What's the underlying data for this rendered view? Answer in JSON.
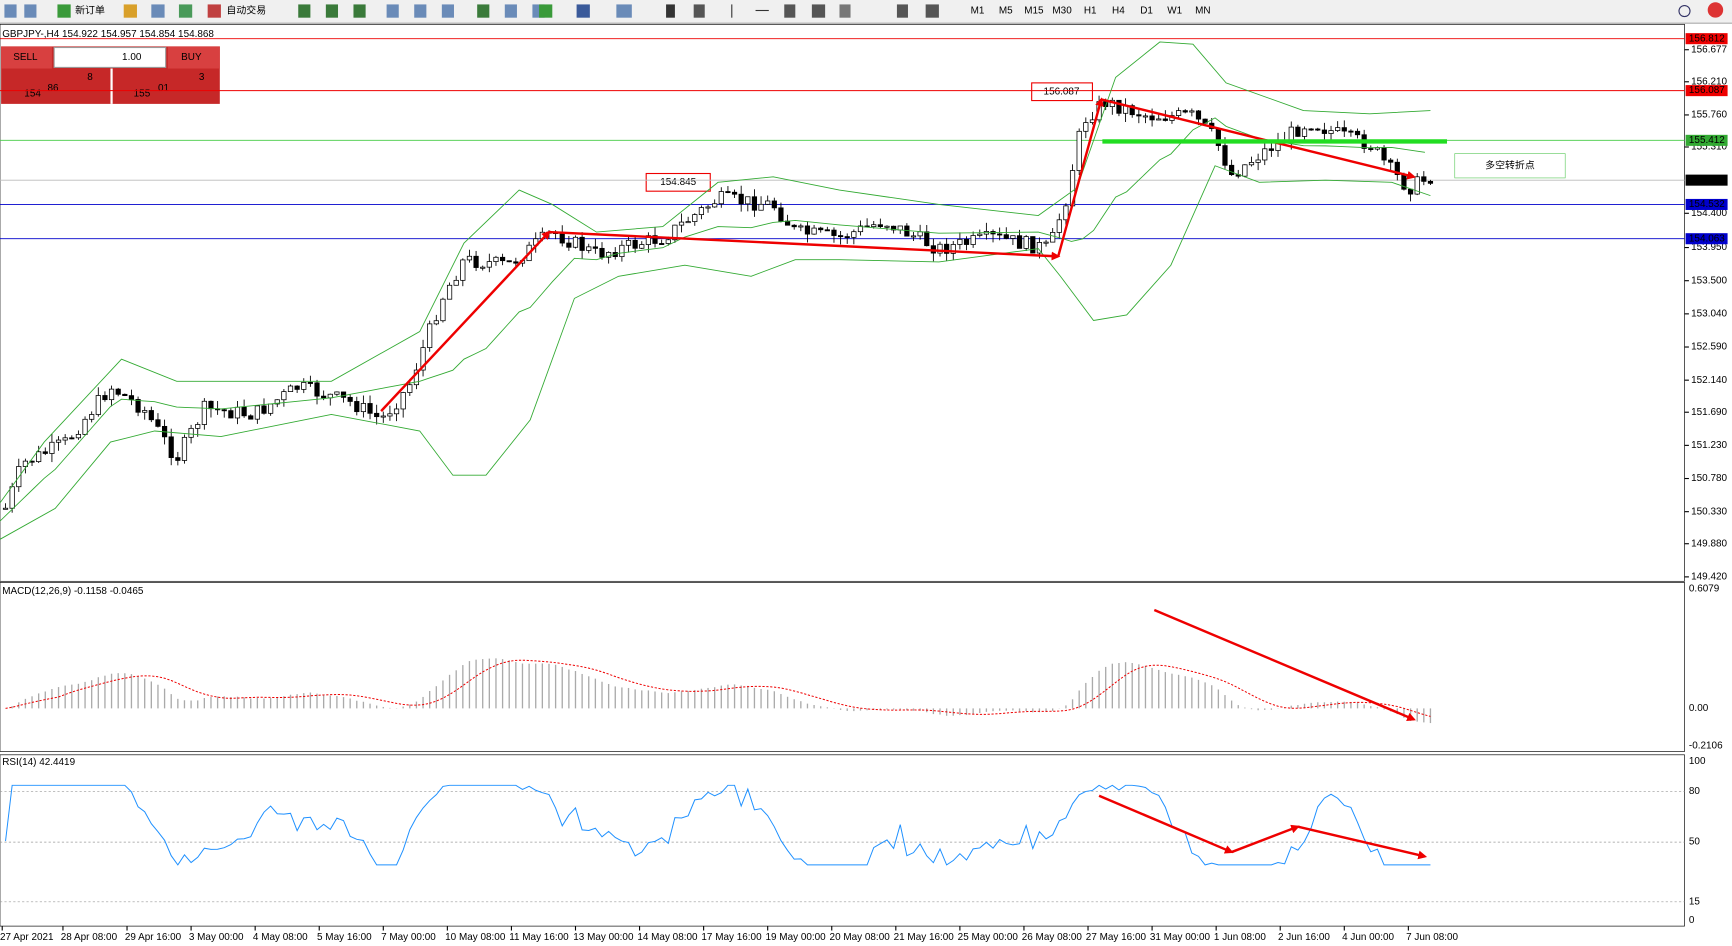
{
  "toolbar": {
    "new_order": "新订单",
    "auto_trading": "自动交易",
    "timeframes": [
      "M1",
      "M5",
      "M15",
      "M30",
      "H1",
      "H4",
      "D1",
      "W1",
      "MN"
    ]
  },
  "chart": {
    "symbol_info": "GBPJPY-,H4  154.922 154.957 154.854 154.868"
  },
  "trade_panel": {
    "sell": "SELL",
    "buy": "BUY",
    "lot": "1.00",
    "sell_price": {
      "prefix": "154",
      "big": "86",
      "sup": "8"
    },
    "buy_price": {
      "prefix": "155",
      "big": "01",
      "sup": "3"
    }
  },
  "price_axis": {
    "ticks": [
      "156.677",
      "156.210",
      "155.760",
      "155.310",
      "154.400",
      "153.950",
      "153.500",
      "153.040",
      "152.590",
      "152.140",
      "151.690",
      "151.230",
      "150.780",
      "150.330",
      "149.880",
      "149.420"
    ]
  },
  "price_lines": [
    "156.812",
    "156.087",
    "155.412",
    "154.868",
    "154.532",
    "154.063"
  ],
  "annotations": {
    "high": "156.087",
    "mid": "154.845",
    "turn": "多空转折点"
  },
  "macd": {
    "label": "MACD(12,26,9) -0.1158 -0.0465",
    "ticks": [
      "0.6079",
      "0.00",
      "-0.2106"
    ]
  },
  "rsi": {
    "label": "RSI(14) 42.4419",
    "ticks": [
      "100",
      "80",
      "50",
      "15",
      "0"
    ]
  },
  "time_axis": {
    "labels": [
      "27 Apr 2021",
      "28 Apr 08:00",
      "29 Apr 16:00",
      "3 May 00:00",
      "4 May 08:00",
      "5 May 16:00",
      "7 May 00:00",
      "10 May 08:00",
      "11 May 16:00",
      "13 May 00:00",
      "14 May 08:00",
      "17 May 16:00",
      "19 May 00:00",
      "20 May 08:00",
      "21 May 16:00",
      "25 May 00:00",
      "26 May 08:00",
      "27 May 16:00",
      "31 May 00:00",
      "1 Jun 08:00",
      "2 Jun 16:00",
      "4 Jun 00:00",
      "7 Jun 08:00"
    ]
  }
}
